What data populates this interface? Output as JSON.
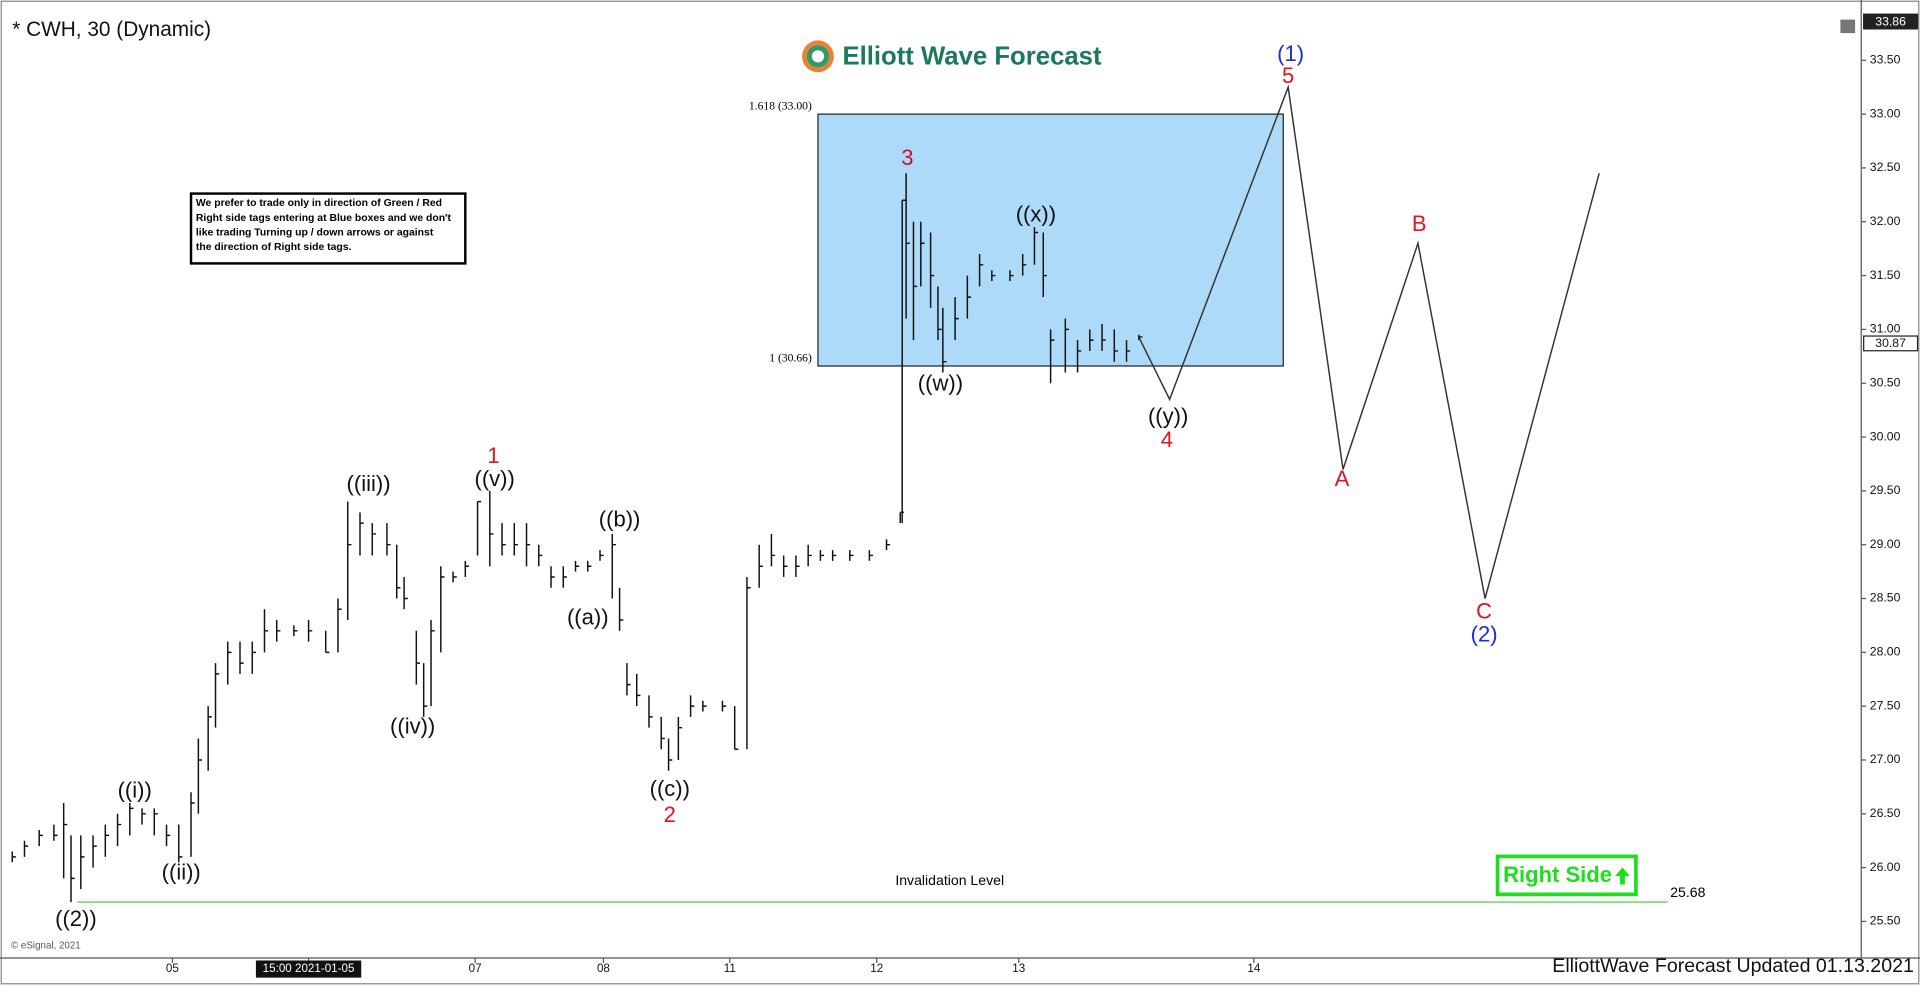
{
  "chart_data": {
    "type": "ohlc",
    "title": "* CWH, 30 (Dynamic)",
    "logo": "Elliott Wave Forecast",
    "footer": "ElliottWave Forecast Updated 01.13.2021",
    "copyright": "© eSignal, 2021",
    "note": [
      "We prefer to trade only in direction of Green / Red",
      "Right side tags entering at Blue boxes and we don't",
      "like trading Turning up / down arrows or against",
      "the direction of Right side tags."
    ],
    "right_side": "Right Side",
    "color": "#111111",
    "ylim": [
      25.16,
      34.06
    ],
    "yticks": [
      {
        "value": 25.5,
        "label": "25.50"
      },
      {
        "value": 26,
        "label": "26.00"
      },
      {
        "value": 26.5,
        "label": "26.50"
      },
      {
        "value": 27,
        "label": "27.00"
      },
      {
        "value": 27.5,
        "label": "27.50"
      },
      {
        "value": 28,
        "label": "28.00"
      },
      {
        "value": 28.5,
        "label": "28.50"
      },
      {
        "value": 29,
        "label": "29.00"
      },
      {
        "value": 29.5,
        "label": "29.50"
      },
      {
        "value": 30,
        "label": "30.00"
      },
      {
        "value": 30.5,
        "label": "30.50"
      },
      {
        "value": 31,
        "label": "31.00"
      },
      {
        "value": 31.5,
        "label": "31.50"
      },
      {
        "value": 32,
        "label": "32.00"
      },
      {
        "value": 32.5,
        "label": "32.50"
      },
      {
        "value": 33,
        "label": "33.00"
      },
      {
        "value": 33.5,
        "label": "33.50"
      }
    ],
    "xlim": [
      0,
      190
    ],
    "xticks": [
      {
        "value": 17.6,
        "label": "05"
      },
      {
        "value": 31.5,
        "label": "15:00 2021-01-05"
      },
      {
        "value": 48.5,
        "label": "07"
      },
      {
        "value": 61.6,
        "label": "08"
      },
      {
        "value": 74.5,
        "label": "11"
      },
      {
        "value": 89.5,
        "label": "12"
      },
      {
        "value": 104,
        "label": "13"
      },
      {
        "value": 128,
        "label": "14"
      }
    ],
    "x": [
      1.25,
      2.5,
      4,
      5.5,
      6.5,
      7.25,
      8.25,
      9.5,
      10.75,
      12,
      13.25,
      14.5,
      15.75,
      17,
      18.25,
      19.5,
      20.25,
      21.25,
      22,
      23.25,
      24.5,
      25.75,
      27,
      28.25,
      30,
      31.5,
      33.25,
      34.5,
      35.5,
      36.75,
      38,
      39.5,
      40.5,
      41.25,
      42.5,
      43.25,
      44,
      45,
      46.25,
      47.5,
      48.75,
      50,
      51.25,
      52.5,
      53.75,
      55,
      56.25,
      57.5,
      58.75,
      60,
      61.25,
      62.5,
      63.25,
      64,
      65,
      66.25,
      67.5,
      68.25,
      69.25,
      70.5,
      71.75,
      73.75,
      75,
      76.25,
      77.5,
      78.75,
      80,
      81.25,
      82.5,
      83.75,
      85,
      86.75,
      88.75,
      90.5,
      91.9,
      92.1,
      92.5,
      93.25,
      94,
      95,
      95.75,
      96.25,
      97.5,
      98.75,
      100,
      101.25,
      103.1,
      104.4,
      105.6,
      106.5,
      107.25,
      108.75,
      110,
      111.25,
      112.5,
      113.75,
      115,
      116.25
    ],
    "high": [
      26.15,
      26.25,
      26.35,
      26.4,
      26.6,
      26.3,
      26.3,
      26.3,
      26.4,
      26.5,
      26.6,
      26.55,
      26.55,
      26.4,
      26.4,
      26.7,
      27.2,
      27.5,
      27.9,
      28.1,
      28.1,
      28.1,
      28.4,
      28.3,
      28.25,
      28.3,
      28.2,
      28.5,
      29.4,
      29.3,
      29.2,
      29.2,
      29.0,
      28.7,
      28.2,
      27.9,
      28.3,
      28.8,
      28.75,
      28.85,
      29.4,
      29.5,
      29.2,
      29.2,
      29.2,
      29.0,
      28.8,
      28.8,
      28.85,
      28.85,
      28.95,
      29.1,
      28.6,
      27.9,
      27.8,
      27.6,
      27.4,
      27.2,
      27.4,
      27.6,
      27.55,
      27.55,
      27.5,
      28.7,
      29.0,
      29.1,
      28.9,
      28.9,
      29.0,
      28.95,
      28.95,
      28.95,
      28.95,
      29.05,
      29.3,
      32.2,
      32.45,
      32.0,
      32.0,
      31.9,
      31.4,
      31.2,
      31.3,
      31.5,
      31.7,
      31.55,
      31.55,
      31.7,
      31.95,
      31.9,
      31.0,
      31.1,
      30.9,
      31.0,
      31.05,
      31.0,
      30.9,
      30.95
    ],
    "low": [
      26.05,
      26.1,
      26.2,
      26.25,
      25.9,
      25.68,
      25.8,
      26.0,
      26.1,
      26.2,
      26.3,
      26.4,
      26.3,
      26.2,
      26.05,
      26.1,
      26.5,
      26.9,
      27.3,
      27.7,
      27.8,
      27.8,
      28.0,
      28.1,
      28.15,
      28.1,
      28.0,
      28.0,
      28.3,
      28.9,
      28.9,
      28.9,
      28.5,
      28.4,
      27.7,
      27.4,
      27.5,
      28.0,
      28.65,
      28.7,
      28.9,
      28.8,
      28.9,
      28.9,
      28.8,
      28.8,
      28.6,
      28.6,
      28.75,
      28.75,
      28.85,
      28.5,
      28.2,
      27.6,
      27.5,
      27.3,
      27.1,
      26.9,
      27.0,
      27.4,
      27.45,
      27.45,
      27.1,
      27.1,
      28.6,
      28.8,
      28.7,
      28.7,
      28.8,
      28.85,
      28.85,
      28.85,
      28.85,
      28.95,
      29.2,
      29.2,
      31.1,
      30.9,
      31.4,
      31.2,
      30.9,
      30.6,
      30.9,
      31.1,
      31.4,
      31.45,
      31.45,
      31.5,
      31.6,
      31.3,
      30.5,
      30.6,
      30.6,
      30.8,
      30.8,
      30.7,
      30.7,
      30.9
    ],
    "close": [
      26.1,
      26.2,
      26.3,
      26.3,
      26.4,
      25.9,
      26.1,
      26.2,
      26.3,
      26.4,
      26.55,
      26.5,
      26.5,
      26.3,
      26.1,
      26.6,
      27.0,
      27.4,
      27.8,
      28.0,
      27.9,
      28.0,
      28.2,
      28.2,
      28.2,
      28.2,
      28.0,
      28.4,
      29.0,
      29.2,
      29.1,
      29.0,
      28.6,
      28.5,
      27.9,
      27.5,
      28.2,
      28.7,
      28.7,
      28.8,
      29.4,
      29.1,
      29.0,
      29.0,
      29.0,
      28.9,
      28.7,
      28.7,
      28.8,
      28.8,
      28.9,
      29.0,
      28.3,
      27.7,
      27.6,
      27.4,
      27.2,
      27.0,
      27.3,
      27.5,
      27.5,
      27.5,
      27.1,
      28.6,
      28.8,
      28.9,
      28.8,
      28.8,
      28.9,
      28.9,
      28.9,
      28.9,
      28.9,
      29.0,
      29.3,
      32.2,
      31.8,
      31.4,
      31.8,
      31.5,
      31.0,
      30.7,
      31.1,
      31.3,
      31.6,
      31.5,
      31.5,
      31.6,
      31.9,
      31.5,
      30.9,
      31.0,
      30.8,
      30.9,
      30.9,
      30.8,
      30.8,
      30.93
    ],
    "projection": {
      "color": "#333333",
      "x": [
        116.25,
        119.4,
        131.5,
        137.1,
        144.75,
        151.6,
        163.25
      ],
      "values": [
        30.93,
        30.35,
        33.25,
        29.7,
        31.8,
        28.5,
        32.45
      ]
    },
    "box": {
      "x": [
        83.5,
        131
      ],
      "low": 30.66,
      "high": 33.0,
      "color": "#aedaf9",
      "high_label": "1.618 (33.00)",
      "low_label": "1 (30.66)"
    },
    "invalidation": {
      "label": "Invalidation Level",
      "value": 25.68,
      "x": [
        7.9,
        170.25
      ],
      "color": "#33cc33"
    },
    "price_markers": [
      {
        "value": 33.86
      },
      {
        "value": 30.87
      }
    ],
    "annotations": [
      {
        "text": "((2))",
        "color": "#111111"
      },
      {
        "text": "((i))",
        "color": "#111111"
      },
      {
        "text": "((ii))",
        "color": "#111111"
      },
      {
        "text": "((iii))",
        "color": "#111111"
      },
      {
        "text": "((iv))",
        "color": "#111111"
      },
      {
        "text": "1",
        "color": "#e0141e"
      },
      {
        "text": "((v))",
        "color": "#111111"
      },
      {
        "text": "((a))",
        "color": "#111111"
      },
      {
        "text": "((b))",
        "color": "#111111"
      },
      {
        "text": "((c))",
        "color": "#111111"
      },
      {
        "text": "2",
        "color": "#e0141e"
      },
      {
        "text": "3",
        "color": "#c8102e"
      },
      {
        "text": "((w))",
        "color": "#111111"
      },
      {
        "text": "((x))",
        "color": "#111111"
      },
      {
        "text": "((y))",
        "color": "#111111"
      },
      {
        "text": "4",
        "color": "#e0141e"
      },
      {
        "text": "(1)",
        "color": "#1a2dd8"
      },
      {
        "text": "5",
        "color": "#e0141e"
      },
      {
        "text": "A",
        "color": "#e0141e"
      },
      {
        "text": "B",
        "color": "#e0141e"
      },
      {
        "text": "C",
        "color": "#e0141e"
      },
      {
        "text": "(2)",
        "color": "#1a2dd8"
      }
    ]
  }
}
